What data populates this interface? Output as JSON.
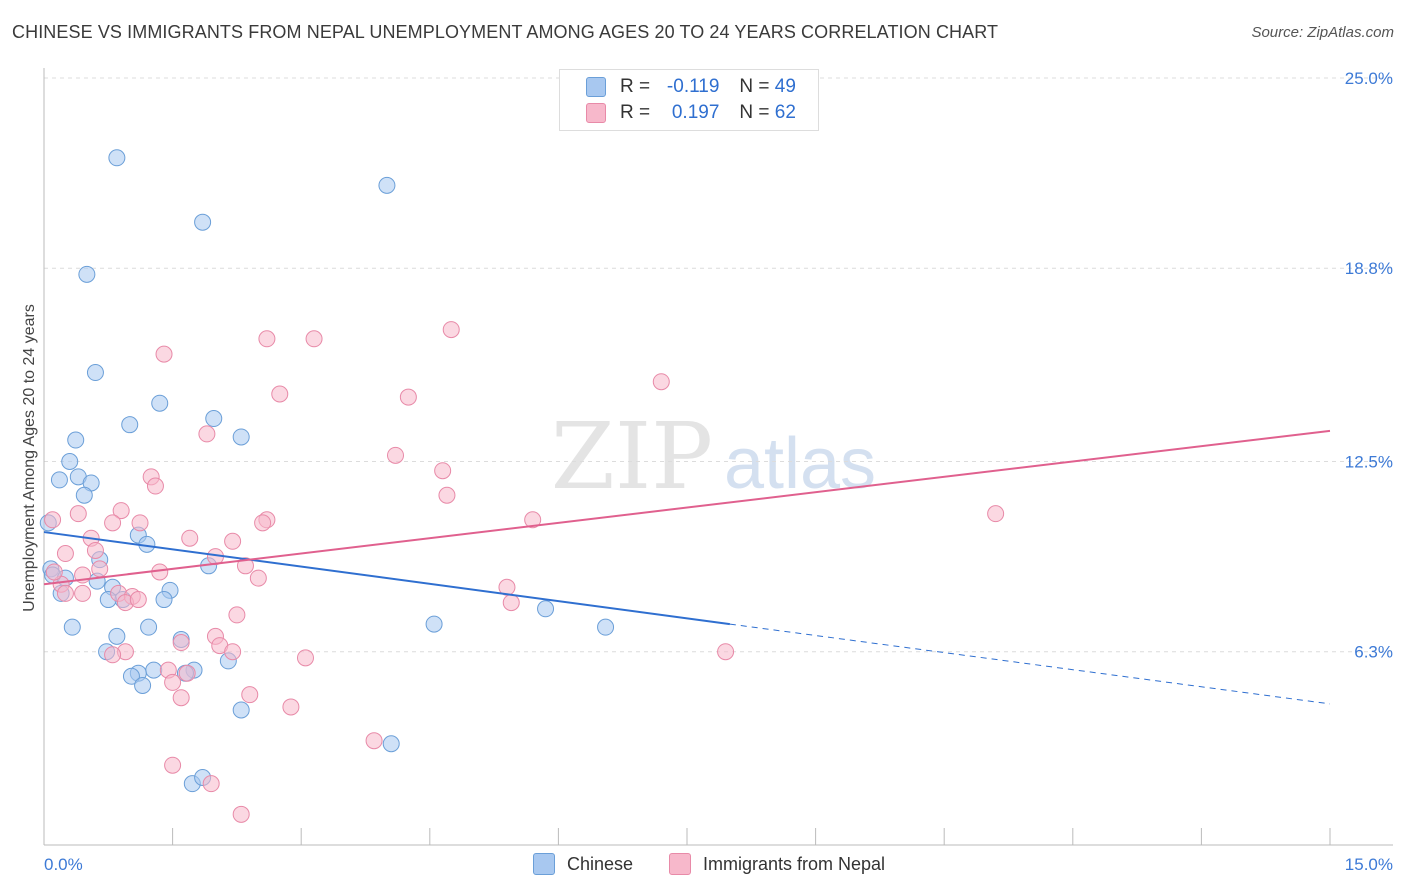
{
  "header": {
    "title": "CHINESE VS IMMIGRANTS FROM NEPAL UNEMPLOYMENT AMONG AGES 20 TO 24 YEARS CORRELATION CHART",
    "source": "Source: ZipAtlas.com"
  },
  "watermark": {
    "zip": "ZIP",
    "atlas": "atlas"
  },
  "legend": {
    "rows": [
      {
        "r_label": "R =",
        "r_value": "-0.119",
        "n_label": "N =",
        "n_value": "49",
        "color": "#a8c8f0"
      },
      {
        "r_label": "R =",
        "r_value": "0.197",
        "n_label": "N =",
        "n_value": "62",
        "color": "#f7b8cb"
      }
    ]
  },
  "bottom_legend": {
    "series1": "Chinese",
    "series2": "Immigrants from Nepal"
  },
  "chart_data": {
    "type": "scatter",
    "title": "CHINESE VS IMMIGRANTS FROM NEPAL UNEMPLOYMENT AMONG AGES 20 TO 24 YEARS CORRELATION CHART",
    "xlabel": "",
    "ylabel": "Unemployment Among Ages 20 to 24 years",
    "xlim": [
      0,
      15
    ],
    "ylim": [
      0,
      25.0
    ],
    "x_tick_labels": [
      "0.0%",
      "15.0%"
    ],
    "y_ticks": [
      6.3,
      12.5,
      18.8,
      25.0
    ],
    "y_tick_labels": [
      "6.3%",
      "12.5%",
      "18.8%",
      "25.0%"
    ],
    "grid": true,
    "series": [
      {
        "name": "Chinese",
        "color": "#a8c8f0",
        "edge_color": "#6b9fd8",
        "line_color": "#2f6fd0",
        "trend": {
          "x": [
            0,
            8.0,
            15.0
          ],
          "y": [
            10.2,
            7.2,
            4.6
          ],
          "solid_until": 8.0
        },
        "points": [
          [
            0.85,
            22.4
          ],
          [
            4.0,
            21.5
          ],
          [
            1.85,
            20.3
          ],
          [
            0.5,
            18.6
          ],
          [
            0.6,
            15.4
          ],
          [
            1.35,
            14.4
          ],
          [
            1.98,
            13.9
          ],
          [
            1.0,
            13.7
          ],
          [
            2.3,
            13.3
          ],
          [
            0.37,
            13.2
          ],
          [
            0.3,
            12.5
          ],
          [
            0.4,
            12.0
          ],
          [
            0.18,
            11.9
          ],
          [
            0.55,
            11.8
          ],
          [
            0.47,
            11.4
          ],
          [
            1.1,
            10.1
          ],
          [
            1.2,
            9.8
          ],
          [
            0.65,
            9.3
          ],
          [
            1.92,
            9.1
          ],
          [
            0.08,
            9.0
          ],
          [
            0.1,
            8.8
          ],
          [
            0.25,
            8.7
          ],
          [
            0.62,
            8.6
          ],
          [
            0.8,
            8.4
          ],
          [
            1.47,
            8.3
          ],
          [
            0.2,
            8.2
          ],
          [
            0.92,
            8.0
          ],
          [
            0.75,
            8.0
          ],
          [
            1.4,
            8.0
          ],
          [
            5.85,
            7.7
          ],
          [
            4.55,
            7.2
          ],
          [
            6.55,
            7.1
          ],
          [
            0.33,
            7.1
          ],
          [
            1.22,
            7.1
          ],
          [
            0.85,
            6.8
          ],
          [
            1.6,
            6.7
          ],
          [
            0.73,
            6.3
          ],
          [
            2.15,
            6.0
          ],
          [
            1.28,
            5.7
          ],
          [
            1.75,
            5.7
          ],
          [
            1.1,
            5.6
          ],
          [
            1.65,
            5.6
          ],
          [
            1.02,
            5.5
          ],
          [
            1.15,
            5.2
          ],
          [
            2.3,
            4.4
          ],
          [
            4.05,
            3.3
          ],
          [
            1.73,
            2.0
          ],
          [
            1.85,
            2.2
          ],
          [
            0.05,
            10.5
          ]
        ]
      },
      {
        "name": "Immigrants from Nepal",
        "color": "#f7b8cb",
        "edge_color": "#e88aa8",
        "line_color": "#e0608e",
        "trend": {
          "x": [
            0,
            15.0
          ],
          "y": [
            8.5,
            13.5
          ],
          "solid_until": 15.0
        },
        "points": [
          [
            4.75,
            16.8
          ],
          [
            2.6,
            16.5
          ],
          [
            3.15,
            16.5
          ],
          [
            1.4,
            16.0
          ],
          [
            7.2,
            15.1
          ],
          [
            2.75,
            14.7
          ],
          [
            4.25,
            14.6
          ],
          [
            1.9,
            13.4
          ],
          [
            4.1,
            12.7
          ],
          [
            4.65,
            12.2
          ],
          [
            1.25,
            12.0
          ],
          [
            1.3,
            11.7
          ],
          [
            4.7,
            11.4
          ],
          [
            11.1,
            10.8
          ],
          [
            0.1,
            10.6
          ],
          [
            0.9,
            10.9
          ],
          [
            5.7,
            10.6
          ],
          [
            0.8,
            10.5
          ],
          [
            1.12,
            10.5
          ],
          [
            2.6,
            10.6
          ],
          [
            2.55,
            10.5
          ],
          [
            0.55,
            10.0
          ],
          [
            1.7,
            10.0
          ],
          [
            2.2,
            9.9
          ],
          [
            0.6,
            9.6
          ],
          [
            0.25,
            9.5
          ],
          [
            2.0,
            9.4
          ],
          [
            2.35,
            9.1
          ],
          [
            0.65,
            9.0
          ],
          [
            1.35,
            8.9
          ],
          [
            0.45,
            8.8
          ],
          [
            2.5,
            8.7
          ],
          [
            0.2,
            8.5
          ],
          [
            5.4,
            8.4
          ],
          [
            0.25,
            8.2
          ],
          [
            0.45,
            8.2
          ],
          [
            0.87,
            8.2
          ],
          [
            1.03,
            8.1
          ],
          [
            0.95,
            7.9
          ],
          [
            1.1,
            8.0
          ],
          [
            5.45,
            7.9
          ],
          [
            2.25,
            7.5
          ],
          [
            2.0,
            6.8
          ],
          [
            1.6,
            6.6
          ],
          [
            2.05,
            6.5
          ],
          [
            2.2,
            6.3
          ],
          [
            0.95,
            6.3
          ],
          [
            0.8,
            6.2
          ],
          [
            3.05,
            6.1
          ],
          [
            7.95,
            6.3
          ],
          [
            1.45,
            5.7
          ],
          [
            1.67,
            5.6
          ],
          [
            1.5,
            5.3
          ],
          [
            1.6,
            4.8
          ],
          [
            2.4,
            4.9
          ],
          [
            2.88,
            4.5
          ],
          [
            3.85,
            3.4
          ],
          [
            1.5,
            2.6
          ],
          [
            1.95,
            2.0
          ],
          [
            2.3,
            1.0
          ],
          [
            0.12,
            8.9
          ],
          [
            0.4,
            10.8
          ]
        ]
      }
    ]
  }
}
